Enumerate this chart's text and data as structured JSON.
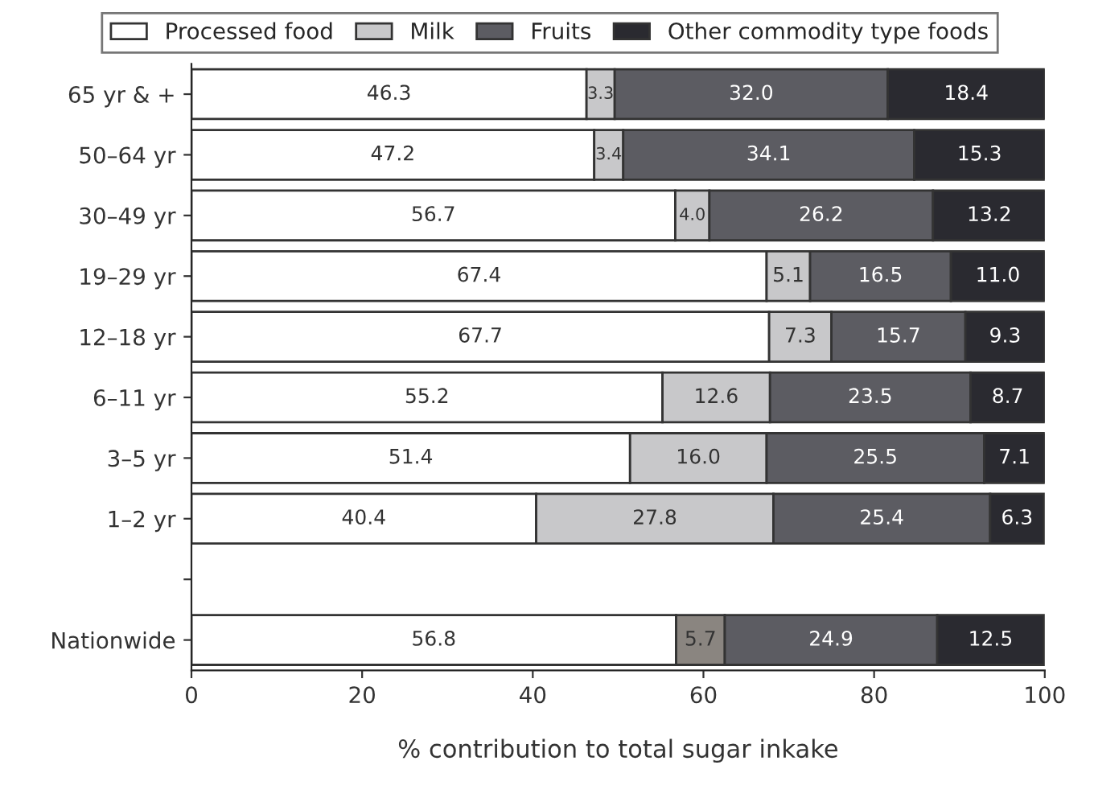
{
  "chart_data": {
    "type": "bar",
    "orientation": "horizontal",
    "stacked": true,
    "xlabel": "% contribution to total sugar inkake",
    "categories": [
      "65 yr & +",
      "50–64 yr",
      "30–49 yr",
      "19–29 yr",
      "12–18 yr",
      "6–11 yr",
      "3–5 yr",
      "1–2 yr",
      null,
      "Nationwide"
    ],
    "series": [
      {
        "name": "Processed food",
        "color": "#ffffff",
        "values": [
          46.3,
          47.2,
          56.7,
          67.4,
          67.7,
          55.2,
          51.4,
          40.4,
          null,
          56.8
        ],
        "value_labels": [
          "46.3",
          "47.2",
          "56.7",
          "67.4",
          "67.7",
          "55.2",
          "51.4",
          "40.4",
          null,
          "56.8"
        ]
      },
      {
        "name": "Milk",
        "color": "#c8c8ca",
        "colors": [
          "#c8c8ca",
          "#c8c8ca",
          "#c8c8ca",
          "#c8c8ca",
          "#c8c8ca",
          "#c8c8ca",
          "#c8c8ca",
          "#c8c8ca",
          "#c8c8ca",
          "#8a8580"
        ],
        "values": [
          3.3,
          3.4,
          4.0,
          5.1,
          7.3,
          12.6,
          16.0,
          27.8,
          null,
          5.7
        ],
        "value_labels": [
          "3.3",
          "3.4",
          "4.0",
          "5.1",
          "7.3",
          "12.6",
          "16.0",
          "27.8",
          null,
          "5.7"
        ]
      },
      {
        "name": "Fruits",
        "color": "#5c5c62",
        "values": [
          32.0,
          34.1,
          26.2,
          16.5,
          15.7,
          23.5,
          25.5,
          25.4,
          null,
          24.9
        ],
        "value_labels": [
          "32.0",
          "34.1",
          "26.2",
          "16.5",
          "15.7",
          "23.5",
          "25.5",
          "25.4",
          null,
          "24.9"
        ]
      },
      {
        "name": "Other commodity type foods",
        "color": "#2a2a30",
        "values": [
          18.4,
          15.3,
          13.2,
          11.0,
          9.3,
          8.7,
          7.1,
          6.3,
          null,
          12.5
        ],
        "value_labels": [
          "18.4",
          "15.3",
          "13.2",
          "11.0",
          "9.3",
          "8.7",
          "7.1",
          "6.3",
          null,
          "12.5"
        ]
      }
    ],
    "xlim": [
      0,
      100
    ],
    "xticks": [
      0,
      20,
      40,
      60,
      80,
      100
    ],
    "grid": false,
    "legend": "top"
  }
}
